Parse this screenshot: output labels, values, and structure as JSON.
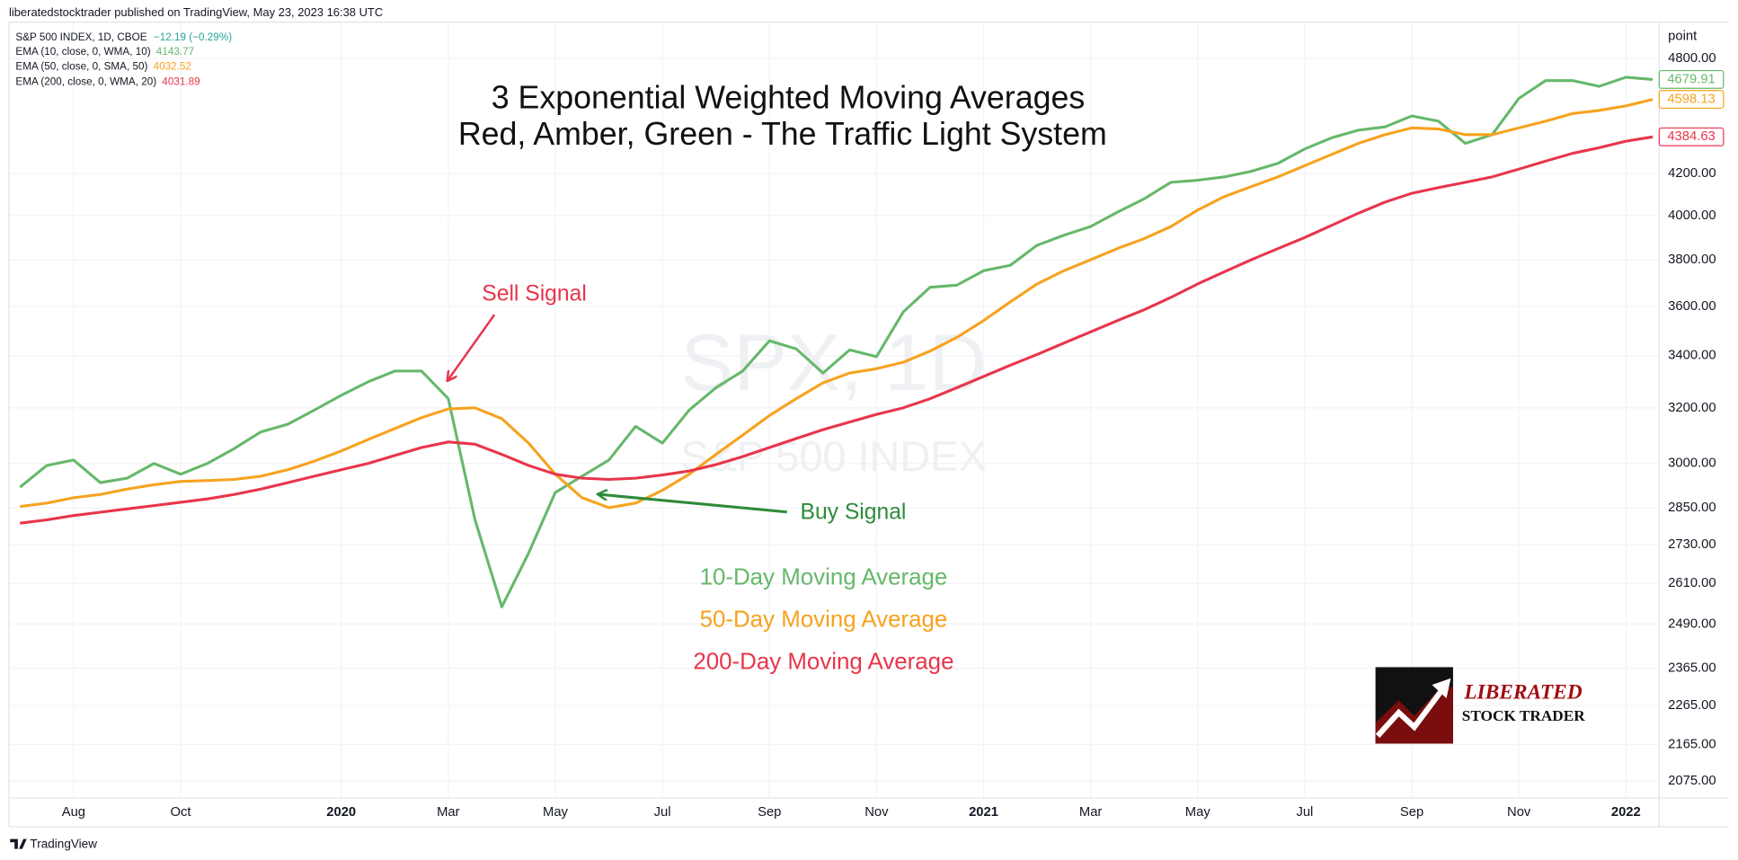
{
  "header": "liberatedstocktrader published on TradingView, May 23, 2023 16:38 UTC",
  "footer": "TradingView",
  "legend": {
    "symbol": "S&P 500 INDEX, 1D, CBOE",
    "change": "−12.19 (−0.29%)",
    "items": [
      {
        "name": "EMA (10, close, 0, WMA, 10)",
        "value": "4143.77"
      },
      {
        "name": "EMA (50, close, 0, SMA, 50)",
        "value": "4032.52"
      },
      {
        "name": "EMA (200, close, 0, WMA, 20)",
        "value": "4031.89"
      }
    ]
  },
  "watermark": {
    "symbol": "SPX, 1D",
    "name": "S&P 500 INDEX"
  },
  "logo": {
    "line1": "LIBERATED",
    "line2": "STOCK TRADER"
  },
  "chart_data": {
    "type": "line",
    "title": [
      "3 Exponential Weighted Moving Averages",
      "Red, Amber, Green - The Traffic Light System"
    ],
    "y_unit": "point",
    "annotations": [
      "Sell Signal",
      "Buy Signal"
    ],
    "key": [
      "10-Day Moving Average",
      "50-Day Moving Average",
      "200-Day Moving Average"
    ],
    "log_scale": true,
    "grid": true,
    "categories": [
      null,
      null,
      "Aug",
      null,
      null,
      null,
      "Oct",
      null,
      null,
      null,
      null,
      null,
      "2020",
      null,
      null,
      null,
      "Mar",
      null,
      null,
      null,
      "May",
      null,
      null,
      null,
      "Jul",
      null,
      null,
      null,
      "Sep",
      null,
      null,
      null,
      "Nov",
      null,
      null,
      null,
      "2021",
      null,
      null,
      null,
      "Mar",
      null,
      null,
      null,
      "May",
      null,
      null,
      null,
      "Jul",
      null,
      null,
      null,
      "Sep",
      null,
      null,
      null,
      "Nov",
      null,
      null,
      null,
      "2022",
      null
    ],
    "ylim": [
      2040,
      4880
    ],
    "yticks": [
      {
        "value": 2075,
        "label": "2075.00"
      },
      {
        "value": 2165,
        "label": "2165.00"
      },
      {
        "value": 2265,
        "label": "2265.00"
      },
      {
        "value": 2365,
        "label": "2365.00"
      },
      {
        "value": 2490,
        "label": "2490.00"
      },
      {
        "value": 2610,
        "label": "2610.00"
      },
      {
        "value": 2730,
        "label": "2730.00"
      },
      {
        "value": 2850,
        "label": "2850.00"
      },
      {
        "value": 3000,
        "label": "3000.00"
      },
      {
        "value": 3200,
        "label": "3200.00"
      },
      {
        "value": 3400,
        "label": "3400.00"
      },
      {
        "value": 3600,
        "label": "3600.00"
      },
      {
        "value": 3800,
        "label": "3800.00"
      },
      {
        "value": 4000,
        "label": "4000.00"
      },
      {
        "value": 4200,
        "label": "4200.00"
      },
      {
        "value": 4800,
        "label": "4800.00"
      }
    ],
    "series": [
      {
        "name": "EMA 10",
        "color": "#66b86a",
        "label": "4679.91",
        "values": [
          2919,
          2993,
          3012,
          2934,
          2949,
          3000,
          2963,
          3000,
          3052,
          3112,
          3140,
          3192,
          3247,
          3298,
          3340,
          3340,
          3234,
          2810,
          2540,
          2703,
          2901,
          2956,
          3012,
          3132,
          3072,
          3192,
          3276,
          3340,
          3459,
          3427,
          3332,
          3423,
          3396,
          3577,
          3681,
          3690,
          3752,
          3776,
          3865,
          3910,
          3950,
          4016,
          4079,
          4158,
          4168,
          4184,
          4211,
          4250,
          4322,
          4378,
          4417,
          4434,
          4491,
          4463,
          4350,
          4394,
          4583,
          4679,
          4679,
          4648,
          4697,
          4685
        ]
      },
      {
        "name": "EMA 50",
        "color": "#f7a21e",
        "label": "4598.13",
        "values": [
          2854,
          2865,
          2883,
          2894,
          2912,
          2927,
          2938,
          2941,
          2945,
          2956,
          2978,
          3008,
          3044,
          3084,
          3124,
          3164,
          3196,
          3200,
          3160,
          3072,
          2963,
          2883,
          2850,
          2865,
          2908,
          2963,
          3032,
          3100,
          3172,
          3234,
          3294,
          3332,
          3349,
          3374,
          3418,
          3473,
          3541,
          3619,
          3695,
          3752,
          3800,
          3850,
          3895,
          3950,
          4026,
          4090,
          4137,
          4184,
          4239,
          4294,
          4350,
          4394,
          4429,
          4423,
          4394,
          4394,
          4429,
          4463,
          4503,
          4520,
          4543,
          4578
        ]
      },
      {
        "name": "EMA 200",
        "color": "#e8354b",
        "label": "4384.63",
        "values": [
          2799,
          2810,
          2824,
          2835,
          2846,
          2857,
          2868,
          2879,
          2894,
          2912,
          2934,
          2956,
          2978,
          3000,
          3028,
          3056,
          3076,
          3068,
          3032,
          2993,
          2963,
          2949,
          2945,
          2949,
          2960,
          2974,
          2996,
          3024,
          3056,
          3088,
          3120,
          3148,
          3176,
          3200,
          3234,
          3276,
          3319,
          3362,
          3405,
          3450,
          3495,
          3541,
          3586,
          3638,
          3695,
          3748,
          3800,
          3850,
          3900,
          3955,
          4011,
          4063,
          4105,
          4132,
          4158,
          4184,
          4222,
          4261,
          4300,
          4328,
          4361,
          4383
        ]
      }
    ]
  }
}
